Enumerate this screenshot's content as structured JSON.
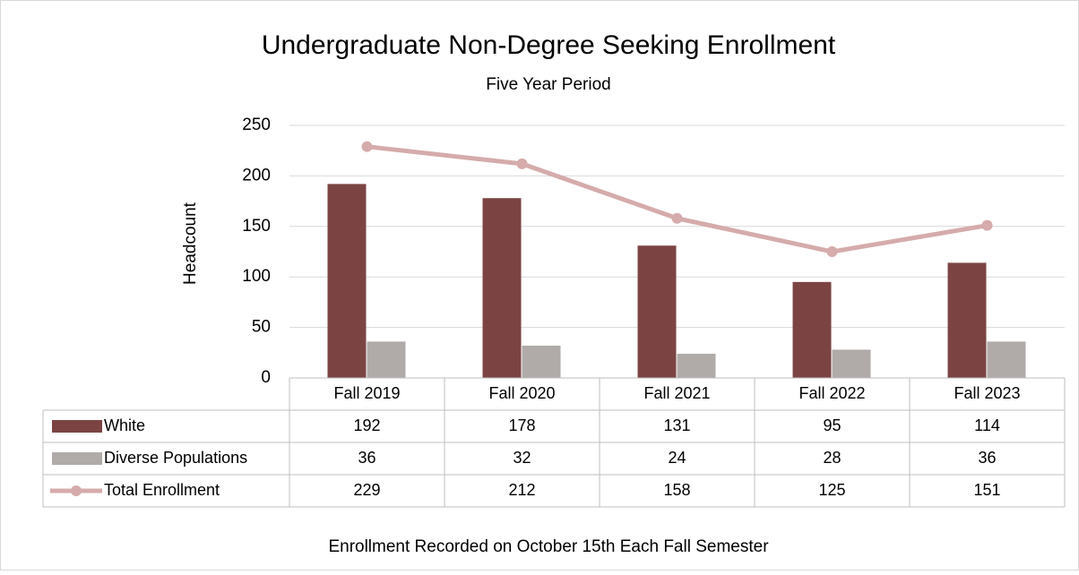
{
  "chart_data": {
    "type": "bar",
    "title": "Undergraduate Non-Degree Seeking Enrollment",
    "subtitle": "Five Year Period",
    "y_label": "Headcount",
    "footnote": "Enrollment Recorded on October 15th Each Fall Semester",
    "categories": [
      "Fall 2019",
      "Fall 2020",
      "Fall 2021",
      "Fall 2022",
      "Fall 2023"
    ],
    "series": [
      {
        "name": "White",
        "type": "bar",
        "color": "#7b4443",
        "values": [
          192,
          178,
          131,
          95,
          114
        ]
      },
      {
        "name": "Diverse Populations",
        "type": "bar",
        "color": "#b0aba9",
        "values": [
          36,
          32,
          24,
          28,
          36
        ]
      },
      {
        "name": "Total Enrollment",
        "type": "line",
        "color": "#d5abab",
        "values": [
          229,
          212,
          158,
          125,
          151
        ]
      }
    ],
    "ylim": [
      0,
      250
    ],
    "yticks": [
      0,
      50,
      100,
      150,
      200,
      250
    ],
    "grid": true,
    "data_table": true
  }
}
